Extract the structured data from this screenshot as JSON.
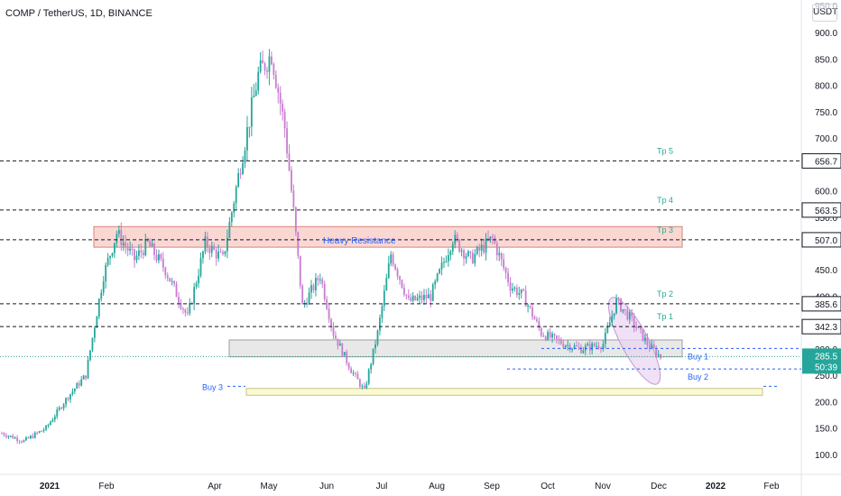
{
  "header": {
    "title": "COMP / TetherUS, 1D, BINANCE",
    "unit": "USDT"
  },
  "colors": {
    "up": "#26a69a",
    "down": "#c77dd0",
    "level_line": "#131722",
    "tp_text": "#22ab94",
    "buy_text": "#2962ff",
    "resistance_fill": "#f8c9c4",
    "support_fill": "#e0e0e0",
    "buy3_fill": "#fafad2",
    "channel_fill": "#e9d4f2"
  },
  "chart_data": {
    "type": "candlestick",
    "title": "COMP / TetherUS, 1D, BINANCE",
    "ylim": [
      62,
      962
    ],
    "y_ticks": [
      100,
      150,
      200,
      250,
      300,
      350,
      400,
      450,
      500,
      550,
      600,
      650,
      700,
      750,
      800,
      850,
      900
    ],
    "y_tick_labels": [
      "100.0",
      "150.0",
      "200.0",
      "250.0",
      "300.0",
      "350.0",
      "400.0",
      "450.0",
      "500.0",
      "550.0",
      "600.0",
      "650.0",
      "700.0",
      "750.0",
      "800.0",
      "850.0",
      "900.0"
    ],
    "x_labels": [
      "2021",
      "Feb",
      "Apr",
      "May",
      "Jun",
      "Jul",
      "Aug",
      "Sep",
      "Oct",
      "Nov",
      "Dec",
      "2022",
      "Feb"
    ],
    "price_path": [
      {
        "day": 0,
        "price": 140
      },
      {
        "day": 10,
        "price": 125
      },
      {
        "day": 20,
        "price": 150
      },
      {
        "day": 30,
        "price": 210
      },
      {
        "day": 38,
        "price": 250
      },
      {
        "day": 46,
        "price": 440
      },
      {
        "day": 52,
        "price": 520
      },
      {
        "day": 60,
        "price": 470
      },
      {
        "day": 66,
        "price": 500
      },
      {
        "day": 74,
        "price": 450
      },
      {
        "day": 84,
        "price": 360
      },
      {
        "day": 92,
        "price": 500
      },
      {
        "day": 100,
        "price": 470
      },
      {
        "day": 108,
        "price": 650
      },
      {
        "day": 116,
        "price": 820
      },
      {
        "day": 122,
        "price": 860
      },
      {
        "day": 128,
        "price": 720
      },
      {
        "day": 132,
        "price": 560
      },
      {
        "day": 136,
        "price": 380
      },
      {
        "day": 144,
        "price": 440
      },
      {
        "day": 150,
        "price": 330
      },
      {
        "day": 158,
        "price": 260
      },
      {
        "day": 164,
        "price": 220
      },
      {
        "day": 170,
        "price": 330
      },
      {
        "day": 176,
        "price": 480
      },
      {
        "day": 184,
        "price": 390
      },
      {
        "day": 194,
        "price": 400
      },
      {
        "day": 204,
        "price": 510
      },
      {
        "day": 212,
        "price": 470
      },
      {
        "day": 222,
        "price": 510
      },
      {
        "day": 230,
        "price": 420
      },
      {
        "day": 236,
        "price": 400
      },
      {
        "day": 244,
        "price": 330
      },
      {
        "day": 254,
        "price": 310
      },
      {
        "day": 262,
        "price": 300
      },
      {
        "day": 272,
        "price": 310
      },
      {
        "day": 278,
        "price": 390
      },
      {
        "day": 284,
        "price": 360
      },
      {
        "day": 292,
        "price": 310
      },
      {
        "day": 298,
        "price": 285
      }
    ],
    "levels": [
      {
        "price": 656.7,
        "label": "656.7",
        "tp": "Tp 5"
      },
      {
        "price": 563.5,
        "label": "563.5",
        "tp": "Tp 4"
      },
      {
        "price": 507.0,
        "label": "507.0",
        "tp": "Tp 3"
      },
      {
        "price": 385.6,
        "label": "385.6",
        "tp": "Tp 2"
      },
      {
        "price": 342.3,
        "label": "342.3",
        "tp": "Tp 1"
      }
    ],
    "current_price": {
      "price": 285.5,
      "label": "285.5",
      "countdown": "50:39"
    },
    "zones": {
      "resistance": {
        "label": "Heavy Resistance",
        "from": 493,
        "to": 532
      },
      "support": {
        "from": 285,
        "to": 317
      },
      "buy3": {
        "from": 212,
        "to": 225
      }
    },
    "buy_lines": [
      {
        "label": "Buy 1",
        "price": 301
      },
      {
        "label": "Buy 2",
        "price": 262
      },
      {
        "label": "Buy 3",
        "price": 229
      }
    ]
  }
}
